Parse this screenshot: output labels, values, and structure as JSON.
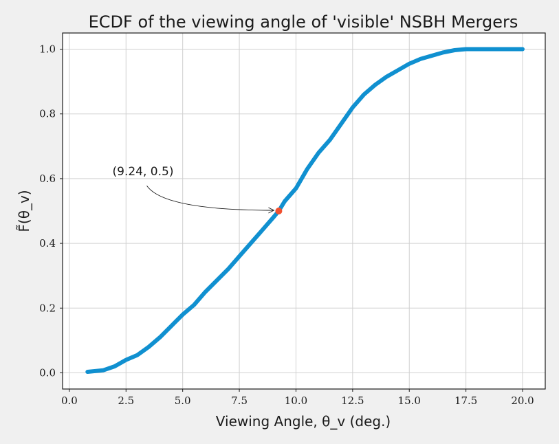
{
  "chart_data": {
    "type": "line",
    "title": "ECDF of the viewing angle of 'visible' NSBH Mergers",
    "xlabel": "Viewing Angle, θ_v (deg.)",
    "ylabel": "F̃(θ_v)",
    "xlim": [
      -0.3,
      21.0
    ],
    "ylim": [
      -0.05,
      1.05
    ],
    "grid": true,
    "x_ticks": [
      "0.0",
      "2.5",
      "5.0",
      "7.5",
      "10.0",
      "12.5",
      "15.0",
      "17.5",
      "20.0"
    ],
    "y_ticks": [
      "0.0",
      "0.2",
      "0.4",
      "0.6",
      "0.8",
      "1.0"
    ],
    "series": [
      {
        "color": "#1090d0",
        "x": [
          0.8,
          1.5,
          2.0,
          2.5,
          3.0,
          3.5,
          4.0,
          4.5,
          5.0,
          5.5,
          6.0,
          6.5,
          7.0,
          7.5,
          8.0,
          8.5,
          9.0,
          9.24,
          9.5,
          10.0,
          10.5,
          11.0,
          11.5,
          12.0,
          12.5,
          13.0,
          13.5,
          14.0,
          14.5,
          15.0,
          15.5,
          16.0,
          16.5,
          17.0,
          17.5,
          18.0,
          19.0,
          20.0
        ],
        "y": [
          0.003,
          0.008,
          0.02,
          0.04,
          0.055,
          0.08,
          0.11,
          0.145,
          0.18,
          0.21,
          0.25,
          0.285,
          0.32,
          0.36,
          0.4,
          0.44,
          0.48,
          0.5,
          0.53,
          0.57,
          0.63,
          0.68,
          0.72,
          0.77,
          0.82,
          0.86,
          0.89,
          0.915,
          0.935,
          0.955,
          0.97,
          0.98,
          0.99,
          0.997,
          1.0,
          1.0,
          1.0,
          1.0
        ]
      }
    ],
    "highlight_point": {
      "x": 9.24,
      "y": 0.5,
      "color": "#f05030"
    },
    "annotation": {
      "text": "(9.24, 0.5)",
      "text_x": 1.9,
      "text_y": 0.61
    }
  }
}
